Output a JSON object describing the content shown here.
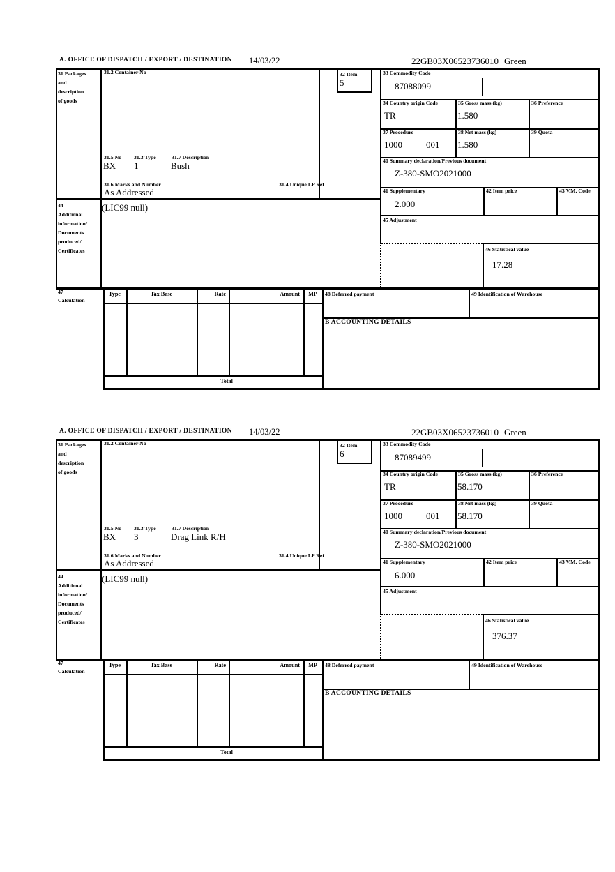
{
  "labels": {
    "office": "A. OFFICE OF DISPATCH / EXPORT / DESTINATION",
    "box31": [
      "31 Packages",
      "and",
      "description",
      "of goods"
    ],
    "box31_2": "31.2 Container No",
    "box31_5": "31.5 No",
    "box31_3": "31.3 Type",
    "box31_7": "31.7 Description",
    "box31_6": "31.6 Marks and Number",
    "box31_4": "31.4 Unique LP Ref",
    "box32": "32 Item",
    "box33": "33 Commodity Code",
    "box34": "34 Country origin Code",
    "box35": "35 Gross mass (kg)",
    "box36": "36 Preference",
    "box37": "37 Procedure",
    "box38": "38 Net mass (kg)",
    "box39": "39 Quota",
    "box40": "40 Summary declaration/Previous document",
    "box41": "41 Supplementary",
    "box42": "42 Item price",
    "box43": "43 V.M. Code",
    "box44": [
      "44",
      "Additional",
      "information/",
      "Documents",
      "produced/",
      "Certificates"
    ],
    "box45": "45 Adjustment",
    "box46": "46 Statistical value",
    "box47": [
      "47",
      "Calculation"
    ],
    "box48": "48 Deferred payment",
    "box49": "49 Identification of Warehouse",
    "accounting": "B ACCOUNTING DETAILS",
    "table": {
      "type": "Type",
      "tax_base": "Tax Base",
      "rate": "Rate",
      "amount": "Amount",
      "mp": "MP",
      "total": "Total"
    }
  },
  "sections": [
    {
      "date": "14/03/22",
      "reference": "22GB03X06523736010",
      "routing": "Green",
      "item_number": "5",
      "commodity_code": "87088099",
      "country_origin_code": "TR",
      "gross_mass_kg": "1.580",
      "procedure": "1000",
      "procedure_extension": "001",
      "net_mass_kg": "1.580",
      "summary_declaration": "Z-380-SMO2021000",
      "supplementary": "2.000",
      "packages_no": "BX",
      "packages_type": "1",
      "goods_description": "Bush",
      "marks_and_number": "As Addressed",
      "additional_information": "(LIC99 null)",
      "statistical_value": "17.28"
    },
    {
      "date": "14/03/22",
      "reference": "22GB03X06523736010",
      "routing": "Green",
      "item_number": "6",
      "commodity_code": "87089499",
      "country_origin_code": "TR",
      "gross_mass_kg": "58.170",
      "procedure": "1000",
      "procedure_extension": "001",
      "net_mass_kg": "58.170",
      "summary_declaration": "Z-380-SMO2021000",
      "supplementary": "6.000",
      "packages_no": "BX",
      "packages_type": "3",
      "goods_description": "Drag Link R/H",
      "marks_and_number": "As Addressed",
      "additional_information": "(LIC99 null)",
      "statistical_value": "376.37"
    }
  ]
}
